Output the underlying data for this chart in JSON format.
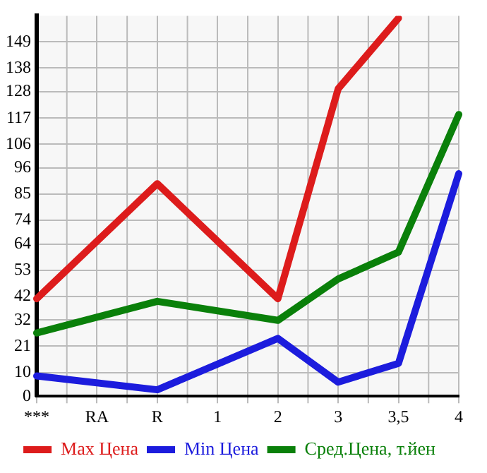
{
  "chart_data": {
    "type": "line",
    "categories": [
      "***",
      "RA",
      "R",
      "1",
      "2",
      "3",
      "3,5",
      "4"
    ],
    "series": [
      {
        "name": "Max Цена",
        "color": "#dd1c1c",
        "values": [
          41,
          null,
          89.4,
          null,
          41,
          129.3,
          159,
          null
        ]
      },
      {
        "name": "Min Цена",
        "color": "#1c1cdd",
        "values": [
          8.5,
          null,
          2.7,
          null,
          24.3,
          5.9,
          13.8,
          93.6
        ]
      },
      {
        "name": "Сред.Цена, т.йен",
        "color": "#0a800a",
        "values": [
          26.6,
          null,
          39.9,
          null,
          31.9,
          49.3,
          60.6,
          118.5
        ]
      }
    ],
    "ylim": [
      0,
      160
    ],
    "yticks": [
      0,
      10,
      21,
      32,
      42,
      53,
      64,
      74,
      85,
      96,
      106,
      117,
      128,
      138,
      149
    ],
    "grid": true,
    "legend": "bottom",
    "marker": "none",
    "line_style": "solid"
  }
}
